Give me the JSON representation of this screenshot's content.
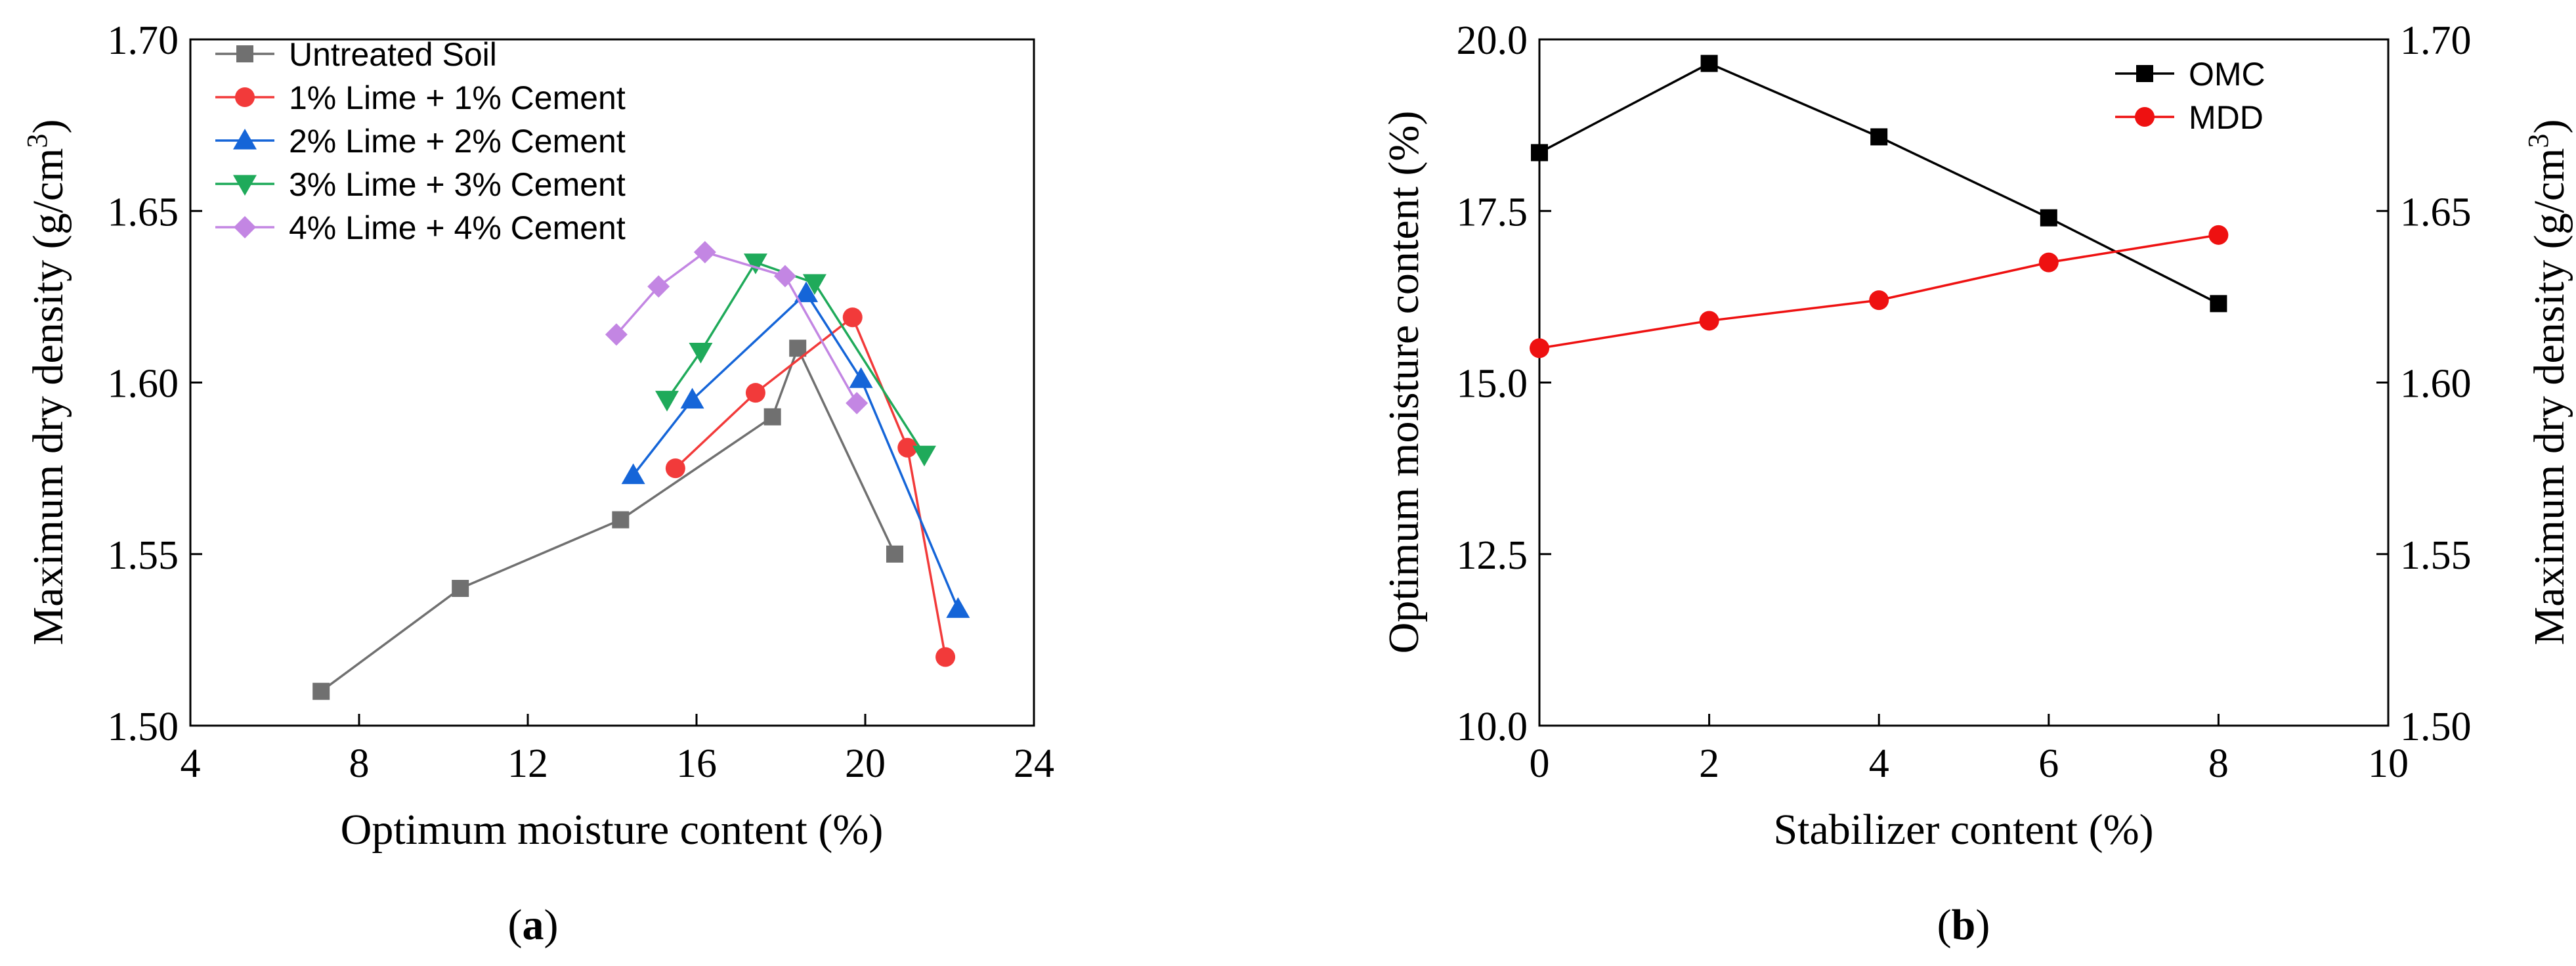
{
  "chart_data": [
    {
      "panel_label": "a",
      "type": "line",
      "xlabel": "Optimum moisture content (%)",
      "ylabel": "Maximum dry density",
      "ylabel_unit": "(g/cm",
      "ylabel_unit_sup": "3",
      "ylabel_unit_close": ")",
      "xlim": [
        4,
        24
      ],
      "ylim": [
        1.5,
        1.7
      ],
      "xticks": [
        4,
        8,
        12,
        16,
        20,
        24
      ],
      "yticks": [
        1.5,
        1.55,
        1.6,
        1.65,
        1.7
      ],
      "xtick_labels": [
        "4",
        "8",
        "12",
        "16",
        "20",
        "24"
      ],
      "ytick_labels": [
        "1.50",
        "1.55",
        "1.60",
        "1.65",
        "1.70"
      ],
      "legend_position": "top-left",
      "series": [
        {
          "name": "Untreated Soil",
          "color": "#707070",
          "marker": "square",
          "x": [
            7.1,
            10.4,
            14.2,
            17.8,
            18.4,
            20.7
          ],
          "y": [
            1.51,
            1.54,
            1.56,
            1.59,
            1.61,
            1.55
          ]
        },
        {
          "name": "1% Lime + 1% Cement",
          "color": "#f23a3a",
          "marker": "circle",
          "x": [
            15.5,
            17.4,
            19.7,
            21.0,
            21.9
          ],
          "y": [
            1.575,
            1.597,
            1.619,
            1.581,
            1.52
          ]
        },
        {
          "name": "2% Lime + 2% Cement",
          "color": "#1565d8",
          "marker": "triangle-up",
          "x": [
            14.5,
            15.9,
            18.6,
            19.9,
            22.2
          ],
          "y": [
            1.573,
            1.595,
            1.626,
            1.601,
            1.534
          ]
        },
        {
          "name": "3% Lime + 3% Cement",
          "color": "#1faa5a",
          "marker": "triangle-down",
          "x": [
            15.3,
            16.1,
            17.4,
            18.8,
            21.4
          ],
          "y": [
            1.595,
            1.609,
            1.635,
            1.629,
            1.579
          ]
        },
        {
          "name": "4% Lime + 4% Cement",
          "color": "#c386e3",
          "marker": "diamond",
          "x": [
            14.1,
            15.1,
            16.2,
            18.1,
            19.8
          ],
          "y": [
            1.614,
            1.628,
            1.638,
            1.631,
            1.594
          ]
        }
      ]
    },
    {
      "panel_label": "b",
      "type": "line",
      "xlabel": "Stabilizer content (%)",
      "ylabel": "Optimum moisture content (%)",
      "ylabel_right": "Maximum dry density",
      "ylabel_right_unit": "(g/cm",
      "ylabel_right_unit_sup": "3",
      "ylabel_right_unit_close": ")",
      "xlim": [
        0,
        10
      ],
      "ylim": [
        10.0,
        20.0
      ],
      "ylim_right": [
        1.5,
        1.7
      ],
      "xticks": [
        0,
        2,
        4,
        6,
        8,
        10
      ],
      "yticks": [
        10.0,
        12.5,
        15.0,
        17.5,
        20.0
      ],
      "yticks_right": [
        1.5,
        1.55,
        1.6,
        1.65,
        1.7
      ],
      "xtick_labels": [
        "0",
        "2",
        "4",
        "6",
        "8",
        "10"
      ],
      "ytick_labels": [
        "10.0",
        "12.5",
        "15.0",
        "17.5",
        "20.0"
      ],
      "ytick_labels_right": [
        "1.50",
        "1.55",
        "1.60",
        "1.65",
        "1.70"
      ],
      "legend_position": "top-right",
      "series": [
        {
          "name": "OMC",
          "axis": "left",
          "color": "#000000",
          "marker": "square",
          "x": [
            0,
            2,
            4,
            6,
            8
          ],
          "y": [
            18.35,
            19.65,
            18.58,
            17.4,
            16.15
          ]
        },
        {
          "name": "MDD",
          "axis": "right",
          "color": "#ee1111",
          "marker": "circle",
          "x": [
            0,
            2,
            4,
            6,
            8
          ],
          "y": [
            1.61,
            1.618,
            1.624,
            1.635,
            1.643
          ]
        }
      ]
    }
  ],
  "captions": {
    "a": {
      "open": "(",
      "label": "a",
      "close": ")"
    },
    "b": {
      "open": "(",
      "label": "b",
      "close": ")"
    }
  }
}
